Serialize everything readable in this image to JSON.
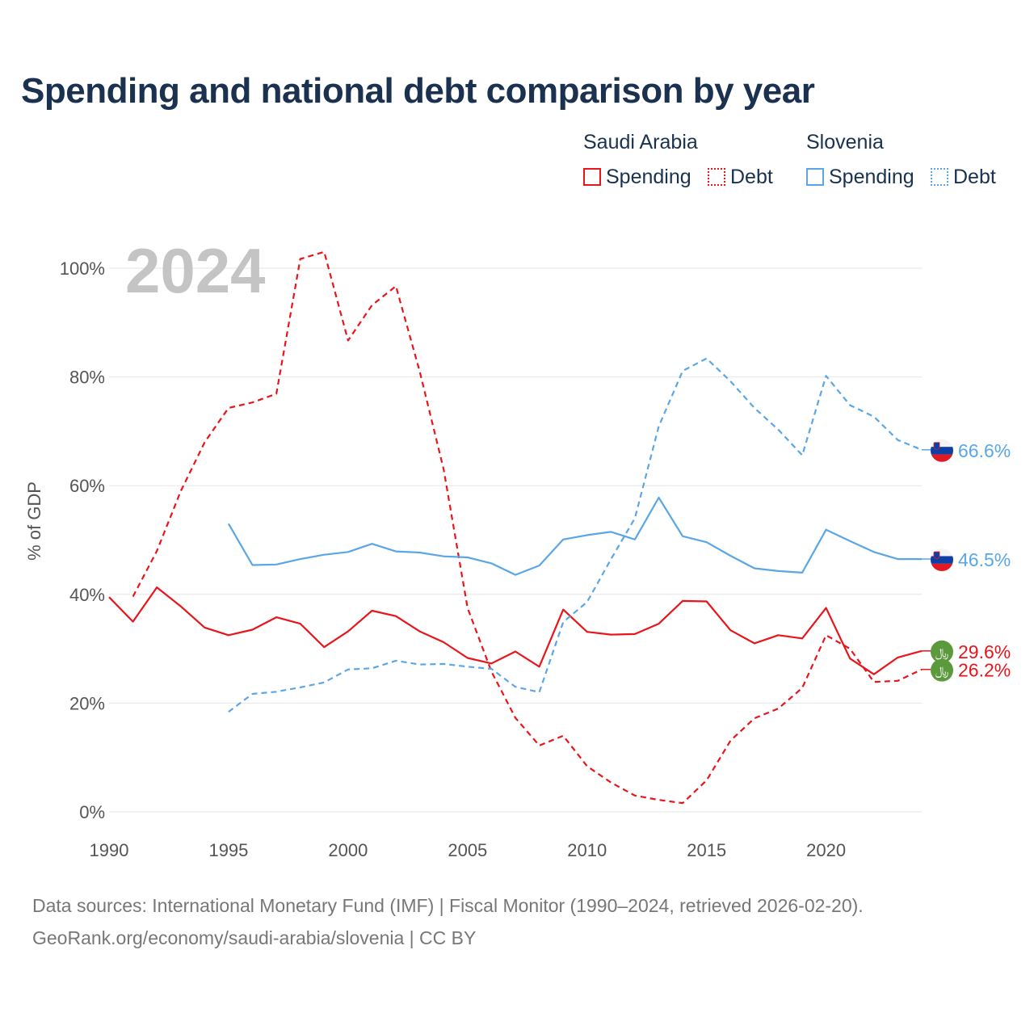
{
  "title": "Spending and national debt comparison by year",
  "legend": {
    "groups": [
      {
        "country": "Saudi Arabia",
        "items": [
          {
            "label": "Spending",
            "style": "solid",
            "color": "#e8151b"
          },
          {
            "label": "Debt",
            "style": "dotted",
            "color": "#e8151b"
          }
        ]
      },
      {
        "country": "Slovenia",
        "items": [
          {
            "label": "Spending",
            "style": "solid",
            "color": "#5aa6e6"
          },
          {
            "label": "Debt",
            "style": "dotted",
            "color": "#5aa6e6"
          }
        ]
      }
    ]
  },
  "year_label": "2024",
  "source": {
    "line1": "Data sources: International Monetary Fund (IMF) | Fiscal Monitor (1990–2024, retrieved 2026-02-20).",
    "line2": "GeoRank.org/economy/saudi-arabia/slovenia | CC BY"
  },
  "colors": {
    "saudi": "#e8151b",
    "slovenia": "#5aa6e6",
    "grid": "#e6e6e6",
    "text": "#1a3150"
  },
  "chart_data": {
    "type": "line",
    "title": "Spending and national debt comparison by year",
    "xlabel": "",
    "ylabel": "% of GDP",
    "xlim": [
      1990,
      2024
    ],
    "ylim": [
      0,
      100
    ],
    "x_ticks": [
      1990,
      1995,
      2000,
      2005,
      2010,
      2015,
      2020
    ],
    "x_tick_labels": [
      "1990",
      "1995",
      "2000",
      "2005",
      "2010",
      "2015",
      "2020"
    ],
    "y_ticks": [
      0,
      20,
      40,
      60,
      80,
      100
    ],
    "y_tick_labels": [
      "0%",
      "20%",
      "40%",
      "60%",
      "80%",
      "100%"
    ],
    "series": [
      {
        "name": "Saudi Arabia Spending",
        "country": "Saudi Arabia",
        "metric": "Spending",
        "style": "solid",
        "color": "#e8151b",
        "x": [
          1990,
          1991,
          1992,
          1993,
          1994,
          1995,
          1996,
          1997,
          1998,
          1999,
          2000,
          2001,
          2002,
          2003,
          2004,
          2005,
          2006,
          2007,
          2008,
          2009,
          2010,
          2011,
          2012,
          2013,
          2014,
          2015,
          2016,
          2017,
          2018,
          2019,
          2020,
          2021,
          2022,
          2023,
          2024
        ],
        "values": [
          39.5,
          35.0,
          41.3,
          37.8,
          33.9,
          32.5,
          33.5,
          35.8,
          34.6,
          30.3,
          33.2,
          37.0,
          36.0,
          33.2,
          31.2,
          28.3,
          27.3,
          29.5,
          26.7,
          37.2,
          33.1,
          32.6,
          32.7,
          34.6,
          38.8,
          38.7,
          33.4,
          31.0,
          32.5,
          31.9,
          37.5,
          28.2,
          25.3,
          28.4,
          29.6
        ],
        "end_label": "29.6%",
        "end_badge": "﷼"
      },
      {
        "name": "Saudi Arabia Debt",
        "country": "Saudi Arabia",
        "metric": "Debt",
        "style": "dashed",
        "color": "#e8151b",
        "x": [
          1991,
          1992,
          1993,
          1994,
          1995,
          1996,
          1997,
          1998,
          1999,
          2000,
          2001,
          2002,
          2003,
          2004,
          2005,
          2006,
          2007,
          2008,
          2009,
          2010,
          2011,
          2012,
          2013,
          2014,
          2015,
          2016,
          2017,
          2018,
          2019,
          2020,
          2021,
          2022,
          2023,
          2024
        ],
        "values": [
          39.6,
          48.0,
          59.0,
          68.0,
          74.3,
          75.3,
          76.9,
          101.7,
          103.0,
          86.7,
          93.2,
          96.7,
          81.0,
          63.0,
          37.5,
          25.8,
          17.3,
          12.2,
          14.0,
          8.4,
          5.4,
          3.0,
          2.2,
          1.6,
          5.8,
          13.1,
          17.2,
          19.0,
          22.8,
          32.5,
          30.0,
          23.9,
          24.1,
          26.2
        ],
        "end_label": "26.2%",
        "end_badge": "﷼"
      },
      {
        "name": "Slovenia Spending",
        "country": "Slovenia",
        "metric": "Spending",
        "style": "solid",
        "color": "#5aa6e6",
        "x": [
          1995,
          1996,
          1997,
          1998,
          1999,
          2000,
          2001,
          2002,
          2003,
          2004,
          2005,
          2006,
          2007,
          2008,
          2009,
          2010,
          2011,
          2012,
          2013,
          2014,
          2015,
          2016,
          2017,
          2018,
          2019,
          2020,
          2021,
          2022,
          2023,
          2024
        ],
        "values": [
          53.0,
          45.4,
          45.5,
          46.5,
          47.3,
          47.8,
          49.3,
          47.9,
          47.7,
          47.0,
          46.8,
          45.7,
          43.6,
          45.3,
          50.1,
          50.9,
          51.5,
          50.1,
          57.8,
          50.7,
          49.6,
          47.1,
          44.8,
          44.3,
          44.0,
          51.9,
          49.8,
          47.8,
          46.5,
          46.5
        ],
        "end_label": "46.5%",
        "end_badge": "flag-si"
      },
      {
        "name": "Slovenia Debt",
        "country": "Slovenia",
        "metric": "Debt",
        "style": "dashed",
        "color": "#5aa6e6",
        "x": [
          1995,
          1996,
          1997,
          1998,
          1999,
          2000,
          2001,
          2002,
          2003,
          2004,
          2005,
          2006,
          2007,
          2008,
          2009,
          2010,
          2011,
          2012,
          2013,
          2014,
          2015,
          2016,
          2017,
          2018,
          2019,
          2020,
          2021,
          2022,
          2023,
          2024
        ],
        "values": [
          18.4,
          21.7,
          22.1,
          22.9,
          23.8,
          26.2,
          26.4,
          27.8,
          27.1,
          27.2,
          26.7,
          26.3,
          23.0,
          22.0,
          34.9,
          38.6,
          46.5,
          54.0,
          70.9,
          81.1,
          83.4,
          79.2,
          74.3,
          70.3,
          65.6,
          80.2,
          74.8,
          72.7,
          68.4,
          66.6
        ],
        "end_label": "66.6%",
        "end_badge": "flag-si"
      }
    ]
  }
}
